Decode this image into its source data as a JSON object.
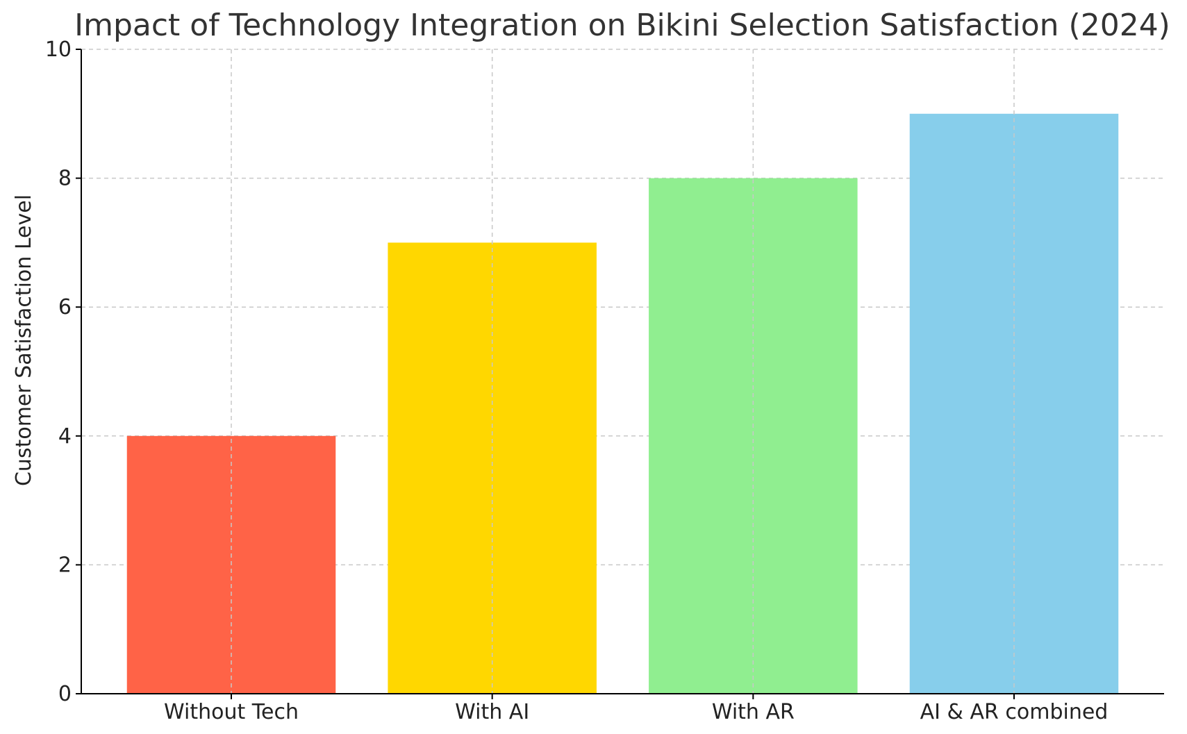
{
  "chart_data": {
    "type": "bar",
    "title": "Impact of Technology Integration on Bikini Selection Satisfaction (2024)",
    "xlabel": "",
    "ylabel": "Customer Satisfaction Level",
    "categories": [
      "Without Tech",
      "With AI",
      "With AR",
      "AI & AR combined"
    ],
    "values": [
      4,
      7,
      8,
      9
    ],
    "colors": [
      "#FF6347",
      "#FFD700",
      "#90EE90",
      "#87CEEB"
    ],
    "ylim": [
      0,
      10
    ],
    "yticks": [
      0,
      2,
      4,
      6,
      8,
      10
    ],
    "grid": true,
    "legend": "none"
  }
}
